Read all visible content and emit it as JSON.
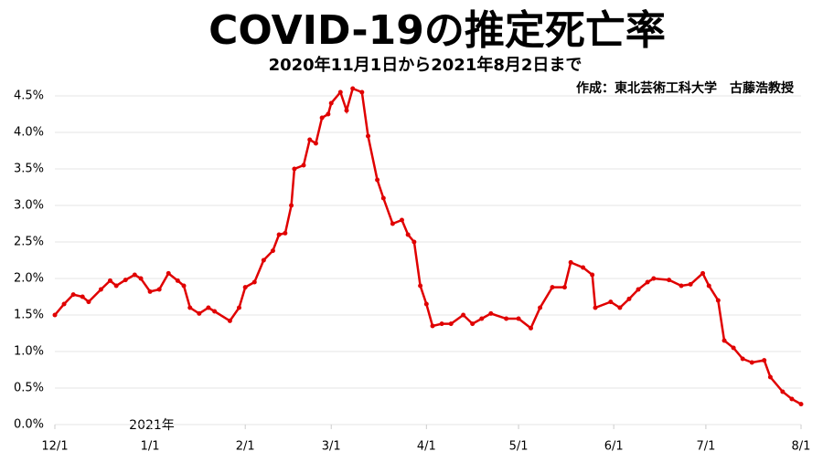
{
  "chart_data": {
    "type": "line",
    "title": "COVID-19の推定死亡率",
    "subtitle": "2020年11月1日から2021年8月2日まで",
    "credit": "作成：東北芸術工科大学　古藤浩教授",
    "annotation": "2021年",
    "x": [
      "12/1",
      "12/4",
      "12/7",
      "12/10",
      "12/12",
      "12/16",
      "12/19",
      "12/21",
      "12/24",
      "12/27",
      "12/29",
      "1/1",
      "1/4",
      "1/7",
      "1/10",
      "1/12",
      "1/14",
      "1/17",
      "1/20",
      "1/22",
      "1/27",
      "1/30",
      "2/1",
      "2/4",
      "2/7",
      "2/10",
      "2/12",
      "2/14",
      "2/16",
      "2/17",
      "2/20",
      "2/22",
      "2/24",
      "2/26",
      "2/28",
      "3/1",
      "3/4",
      "3/6",
      "3/8",
      "3/11",
      "3/13",
      "3/16",
      "3/18",
      "3/21",
      "3/24",
      "3/26",
      "3/28",
      "3/30",
      "4/1",
      "4/3",
      "4/6",
      "4/9",
      "4/13",
      "4/16",
      "4/19",
      "4/22",
      "4/27",
      "5/1",
      "5/5",
      "5/8",
      "5/12",
      "5/16",
      "5/18",
      "5/22",
      "5/25",
      "5/26",
      "5/31",
      "6/3",
      "6/6",
      "6/9",
      "6/12",
      "6/14",
      "6/19",
      "6/23",
      "6/26",
      "6/30",
      "7/2",
      "7/5",
      "7/7",
      "7/10",
      "7/13",
      "7/16",
      "7/20",
      "7/22",
      "7/26",
      "7/29",
      "8/1"
    ],
    "series": [
      {
        "name": "推定死亡率",
        "color": "#e00000",
        "values": [
          1.5,
          1.65,
          1.78,
          1.75,
          1.68,
          1.85,
          1.97,
          1.9,
          1.98,
          2.05,
          2.0,
          1.82,
          1.85,
          2.07,
          1.97,
          1.9,
          1.6,
          1.52,
          1.6,
          1.55,
          1.42,
          1.6,
          1.88,
          1.95,
          2.25,
          2.38,
          2.6,
          2.62,
          3.0,
          3.5,
          3.55,
          3.9,
          3.85,
          4.2,
          4.25,
          4.4,
          4.55,
          4.3,
          4.6,
          4.55,
          3.95,
          3.35,
          3.1,
          2.75,
          2.8,
          2.6,
          2.5,
          1.9,
          1.65,
          1.35,
          1.38,
          1.38,
          1.5,
          1.38,
          1.45,
          1.52,
          1.45,
          1.45,
          1.32,
          1.6,
          1.88,
          1.88,
          2.22,
          2.15,
          2.05,
          1.6,
          1.68,
          1.6,
          1.72,
          1.85,
          1.95,
          2.0,
          1.98,
          1.9,
          1.92,
          2.07,
          1.9,
          1.7,
          1.15,
          1.05,
          0.9,
          0.85,
          0.88,
          0.65,
          0.45,
          0.35,
          0.28
        ]
      }
    ],
    "xlim": [
      "12/1",
      "8/1"
    ],
    "xticks": [
      "12/1",
      "1/1",
      "2/1",
      "3/1",
      "4/1",
      "5/1",
      "6/1",
      "7/1",
      "8/1"
    ],
    "ylim": [
      0,
      4.5
    ],
    "yticks": [
      {
        "value": 0,
        "label": "0.0%"
      },
      {
        "value": 0.5,
        "label": "0.5%"
      },
      {
        "value": 1,
        "label": "1.0%"
      },
      {
        "value": 1.5,
        "label": "1.5%"
      },
      {
        "value": 2,
        "label": "2.0%"
      },
      {
        "value": 2.5,
        "label": "2.5%"
      },
      {
        "value": 3,
        "label": "3.0%"
      },
      {
        "value": 3.5,
        "label": "3.5%"
      },
      {
        "value": 4,
        "label": "4.0%"
      },
      {
        "value": 4.5,
        "label": "4.5%"
      }
    ],
    "grid": true
  }
}
